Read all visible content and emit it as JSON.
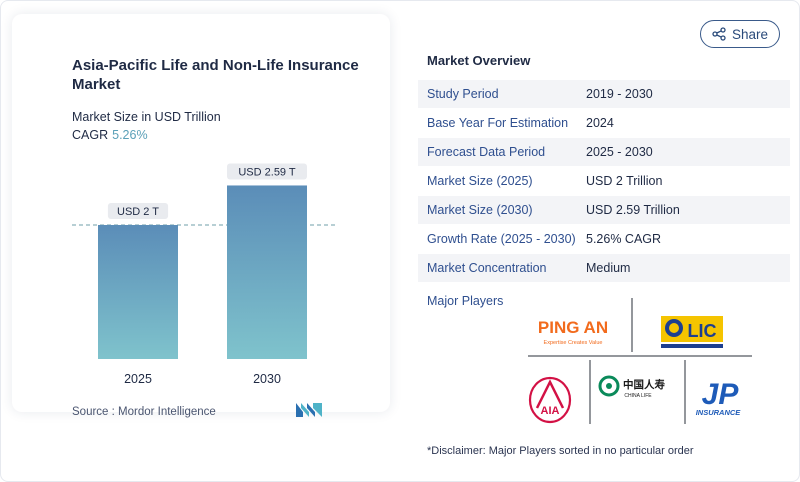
{
  "chart_card": {
    "title": "Asia-Pacific Life and Non-Life Insurance Market",
    "subtitle": "Market Size in USD Trillion",
    "cagr_label": "CAGR",
    "cagr_value": "5.26%",
    "source": "Source :  Mordor Intelligence"
  },
  "chart_data": {
    "type": "bar",
    "title": "Asia-Pacific Life and Non-Life Insurance Market",
    "ylabel": "Market Size in USD Trillion",
    "categories": [
      "2025",
      "2030"
    ],
    "values": [
      2.0,
      2.59
    ],
    "data_labels": [
      "USD 2 T",
      "USD 2.59 T"
    ],
    "reference_line_value": 2.0,
    "ylim": [
      0,
      2.8
    ],
    "grid": false,
    "colors": {
      "bar_top": "#5b8db8",
      "bar_bottom": "#7fc3cc"
    }
  },
  "share": {
    "label": "Share",
    "icon": "share-icon"
  },
  "overview": {
    "title": "Market Overview",
    "rows": [
      {
        "key": "Study Period",
        "value": "2019 - 2030"
      },
      {
        "key": "Base Year For Estimation",
        "value": "2024"
      },
      {
        "key": "Forecast Data Period",
        "value": "2025 - 2030"
      },
      {
        "key": "Market Size (2025)",
        "value": "USD 2 Trillion"
      },
      {
        "key": "Market Size (2030)",
        "value": "USD 2.59 Trillion"
      },
      {
        "key": "Growth Rate (2025 - 2030)",
        "value": "5.26% CAGR"
      },
      {
        "key": "Market Concentration",
        "value": "Medium"
      }
    ],
    "major_players_label": "Major Players",
    "players": [
      {
        "name": "PING AN",
        "tagline": "Expertise Creates Value"
      },
      {
        "name": "LIC",
        "tagline": ""
      },
      {
        "name": "AIA",
        "tagline": ""
      },
      {
        "name": "中国人寿",
        "tagline": "CHINA LIFE"
      },
      {
        "name": "JP",
        "tagline": "INSURANCE"
      }
    ],
    "disclaimer": "*Disclaimer: Major Players sorted in no particular order"
  },
  "colors": {
    "accent": "#2f4f8f",
    "cagr": "#5aa0b8",
    "pingan": "#f26b1d",
    "lic_blue": "#1d3f8f",
    "lic_yellow": "#f5c400",
    "aia_red": "#d31145",
    "chinalife_green": "#0a8a5a",
    "jp_blue": "#1e5bb8"
  }
}
